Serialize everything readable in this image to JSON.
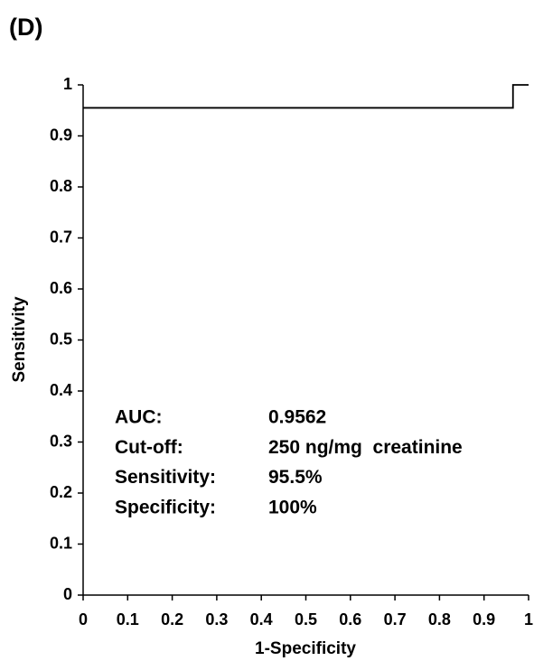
{
  "chart_data": {
    "type": "line",
    "panel_label": "(D)",
    "x_label": "1-Specificity",
    "y_label": "Sensitivity",
    "x": [
      0,
      0.965,
      0.965,
      1
    ],
    "values": [
      0.955,
      0.955,
      1,
      1
    ],
    "color": "#000000",
    "xlim": [
      0,
      1
    ],
    "ylim": [
      0,
      1
    ],
    "xticks": [
      0,
      0.1,
      0.2,
      0.3,
      0.4,
      0.5,
      0.6,
      0.7,
      0.8,
      0.9,
      1
    ],
    "yticks": [
      0,
      0.1,
      0.2,
      0.3,
      0.4,
      0.5,
      0.6,
      0.7,
      0.8,
      0.9,
      1
    ],
    "annotations": [
      [
        "AUC:",
        "0.9562"
      ],
      [
        "Cut-off:",
        "250 ng/mg  creatinine"
      ],
      [
        "Sensitivity:",
        "95.5%"
      ],
      [
        "Specificity:",
        "100%"
      ]
    ]
  }
}
